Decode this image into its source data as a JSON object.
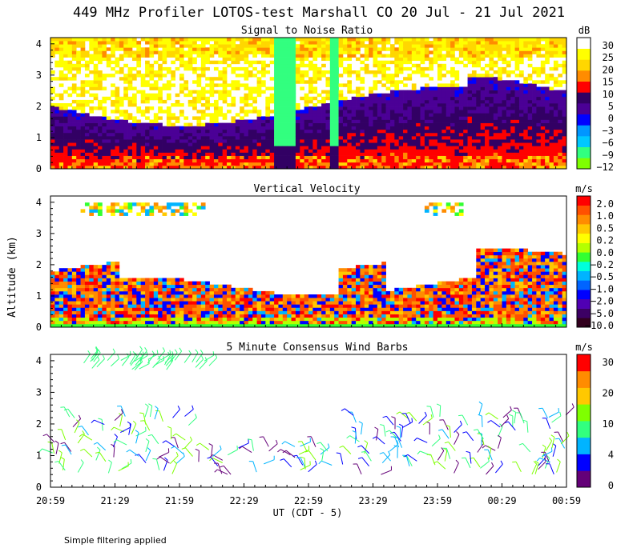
{
  "title": "449 MHz Profiler LOTOS-test Marshall CO 20 Jul - 21 Jul 2021",
  "ylabel": "Altitude (km)",
  "xlabel": "UT  (CDT - 5)",
  "footnote": "Simple filtering applied",
  "x_ticks": [
    "20:59",
    "21:29",
    "21:59",
    "22:29",
    "22:59",
    "23:29",
    "23:59",
    "00:29",
    "00:59"
  ],
  "y_ticks": [
    "0",
    "1",
    "2",
    "3",
    "4"
  ],
  "panels": [
    {
      "title": "Signal to Noise Ratio",
      "units": "dB",
      "colors": [
        "#7fff00",
        "#32ff7f",
        "#00c8ff",
        "#0096ff",
        "#0000ff",
        "#4b0096",
        "#320064",
        "#ff0000",
        "#ff8c00",
        "#ffd700",
        "#ffff00",
        "#ffffff"
      ],
      "labels": [
        "30",
        "25",
        "20",
        "15",
        "10",
        "5",
        "0",
        "−3",
        "−6",
        "−9",
        "−12"
      ]
    },
    {
      "title": "Vertical Velocity",
      "units": "m/s",
      "colors": [
        "#32001e",
        "#3c0064",
        "#5000b4",
        "#0000ff",
        "#0064ff",
        "#00b4ff",
        "#00ffdc",
        "#32ff32",
        "#b4ff00",
        "#ffff00",
        "#ffc800",
        "#ff8c00",
        "#ff5000",
        "#ff0000"
      ],
      "labels": [
        "2.0",
        "1.0",
        "0.5",
        "0.2",
        "0.0",
        "−0.2",
        "−0.5",
        "−1.0",
        "−2.0",
        "−5.0",
        "−10.0"
      ]
    },
    {
      "title": "5 Minute Consensus Wind Barbs",
      "units": "m/s",
      "colors": [
        "#640078",
        "#0000ff",
        "#00b4ff",
        "#32ff7f",
        "#7fff00",
        "#ffc800",
        "#ff8c00",
        "#ff0000"
      ],
      "labels": [
        "30",
        "20",
        "10",
        "4",
        "0"
      ]
    }
  ],
  "chart_data": {
    "type": "heatmap",
    "title": "449 MHz Profiler LOTOS-test Marshall CO 20 Jul - 21 Jul 2021",
    "x_range": [
      "20:59",
      "00:59"
    ],
    "y_range_km": [
      0,
      4.2
    ],
    "series": [
      {
        "name": "Signal to Noise Ratio",
        "units": "dB",
        "scale": [
          30,
          25,
          20,
          15,
          10,
          5,
          0,
          -3,
          -6,
          -9,
          -12
        ]
      },
      {
        "name": "Vertical Velocity",
        "units": "m/s",
        "scale": [
          2.0,
          1.0,
          0.5,
          0.2,
          0.0,
          -0.2,
          -0.5,
          -1.0,
          -2.0,
          -5.0,
          -10.0
        ]
      },
      {
        "name": "5 Minute Consensus Wind Barbs",
        "units": "m/s",
        "scale": [
          30,
          20,
          10,
          4,
          0
        ]
      }
    ]
  }
}
